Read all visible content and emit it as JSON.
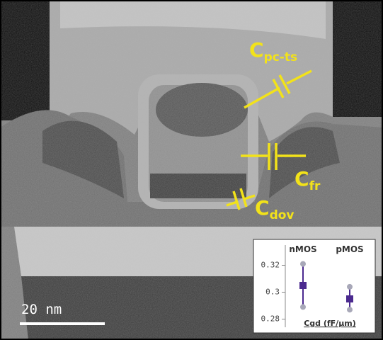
{
  "labels": [
    {
      "symbol": "C",
      "subscript": "pc-ts"
    },
    {
      "symbol": "C",
      "subscript": "fr"
    },
    {
      "symbol": "C",
      "subscript": "dov"
    }
  ],
  "scale_bar": "20 nm",
  "chart_data": {
    "type": "range",
    "categories": [
      "nMOS",
      "pMOS"
    ],
    "values": [
      0.305,
      0.295
    ],
    "low": [
      0.289,
      0.287
    ],
    "high": [
      0.321,
      0.304
    ],
    "color": "#4b2a8f",
    "whisker_color": "#a8a8b8",
    "xlabel": "Cgd (fF/µm)",
    "ylim": [
      0.275,
      0.335
    ],
    "yticks": [
      0.28,
      0.3,
      0.32
    ]
  }
}
